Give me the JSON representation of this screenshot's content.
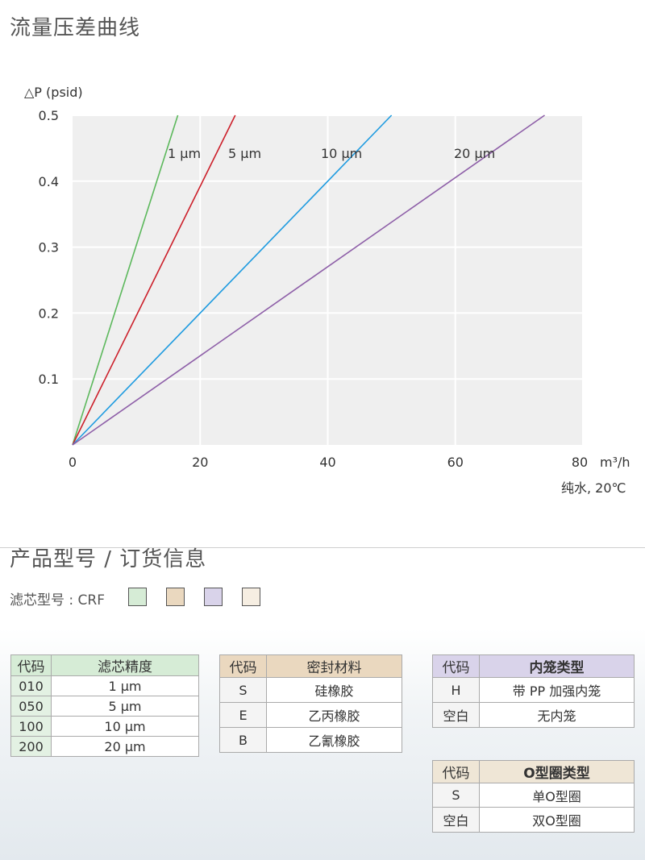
{
  "header": {
    "title": "流量压差曲线"
  },
  "chart_data": {
    "type": "line",
    "ylabel": "△P (psid)",
    "xlabel": "m³/h",
    "note": "纯水, 20℃",
    "xlim": [
      0,
      80
    ],
    "ylim": [
      0,
      0.5
    ],
    "x_ticks": [
      0,
      20,
      40,
      60,
      80
    ],
    "y_ticks": [
      0.1,
      0.2,
      0.3,
      0.4,
      0.5
    ],
    "y_tick_labels": [
      "0.1",
      "0.2",
      "0.3",
      "0.4",
      "0.5"
    ],
    "grid": true,
    "series": [
      {
        "name": "1 µm",
        "color": "#5cb85c",
        "x": [
          0,
          16.5
        ],
        "y": [
          0,
          0.5
        ]
      },
      {
        "name": "5 µm",
        "color": "#cc1f2a",
        "x": [
          0,
          25.5
        ],
        "y": [
          0,
          0.5
        ]
      },
      {
        "name": "10 µm",
        "color": "#1e9be0",
        "x": [
          0,
          50
        ],
        "y": [
          0,
          0.5
        ]
      },
      {
        "name": "20 µm",
        "color": "#8e5fa8",
        "x": [
          0,
          74
        ],
        "y": [
          0,
          0.5
        ]
      }
    ]
  },
  "order": {
    "title": "产品型号 / 订货信息",
    "model_label": "滤芯型号 : CRF",
    "swatch_colors": [
      "#d6ecd6",
      "#ead8bf",
      "#d9d3ea",
      "#f6eee2"
    ]
  },
  "tables": {
    "precision": {
      "headers": [
        "代码",
        "滤芯精度"
      ],
      "rows": [
        [
          "010",
          "1 µm"
        ],
        [
          "050",
          "5 µm"
        ],
        [
          "100",
          "10 µm"
        ],
        [
          "200",
          "20 µm"
        ]
      ]
    },
    "seal": {
      "headers": [
        "代码",
        "密封材料"
      ],
      "rows": [
        [
          "S",
          "硅橡胶"
        ],
        [
          "E",
          "乙丙橡胶"
        ],
        [
          "B",
          "乙氰橡胶"
        ]
      ]
    },
    "cage": {
      "headers": [
        "代码",
        "内笼类型"
      ],
      "rows": [
        [
          "H",
          "带 PP 加强内笼"
        ],
        [
          "空白",
          "无内笼"
        ]
      ]
    },
    "oring": {
      "headers": [
        "代码",
        "O型圈类型"
      ],
      "rows": [
        [
          "S",
          "单O型圈"
        ],
        [
          "空白",
          "双O型圈"
        ]
      ]
    }
  }
}
